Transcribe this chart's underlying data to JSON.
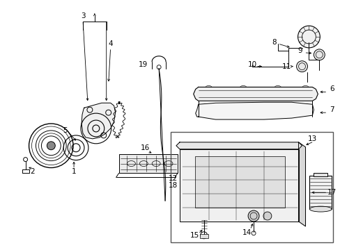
{
  "bg_color": "#ffffff",
  "line_color": "#000000",
  "label_color": "#000000",
  "label_fontsize": 7.5,
  "fig_w": 4.89,
  "fig_h": 3.6,
  "dpi": 100
}
